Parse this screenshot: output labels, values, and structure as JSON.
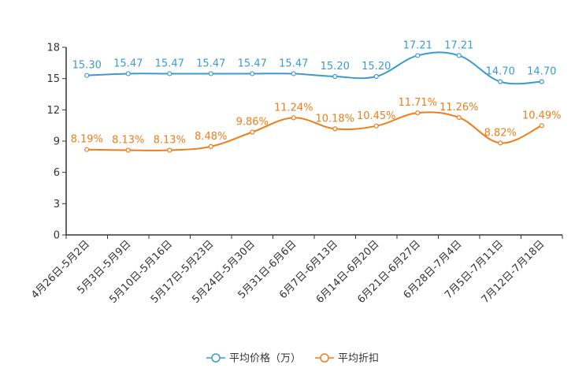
{
  "chart_data": {
    "type": "line",
    "categories": [
      "4月26日-5月2日",
      "5月3日-5月9日",
      "5月10日-5月16日",
      "5月17日-5月23日",
      "5月24日-5月30日",
      "5月31日-6月6日",
      "6月7日-6月13日",
      "6月14日-6月20日",
      "6月21日-6月27日",
      "6月28日-7月4日",
      "7月5日-7月11日",
      "7月12日-7月18日"
    ],
    "ylim": [
      0,
      18
    ],
    "yticks": [
      "0",
      "3",
      "6",
      "9",
      "12",
      "15",
      "18"
    ],
    "series": [
      {
        "name": "平均价格（万）",
        "color": "#3a9bd2",
        "values": [
          15.3,
          15.47,
          15.47,
          15.47,
          15.47,
          15.47,
          15.2,
          15.2,
          17.21,
          17.21,
          14.7,
          14.7
        ],
        "labels": [
          "15.30",
          "15.47",
          "15.47",
          "15.47",
          "15.47",
          "15.47",
          "15.20",
          "15.20",
          "17.21",
          "17.21",
          "14.70",
          "14.70"
        ]
      },
      {
        "name": "平均折扣",
        "color": "#f07d1a",
        "values": [
          8.19,
          8.13,
          8.13,
          8.48,
          9.86,
          11.24,
          10.18,
          10.45,
          11.71,
          11.26,
          8.82,
          10.49
        ],
        "labels": [
          "8.19%",
          "8.13%",
          "8.13%",
          "8.48%",
          "9.86%",
          "11.24%",
          "10.18%",
          "10.45%",
          "11.71%",
          "11.26%",
          "8.82%",
          "10.49%"
        ]
      }
    ]
  }
}
